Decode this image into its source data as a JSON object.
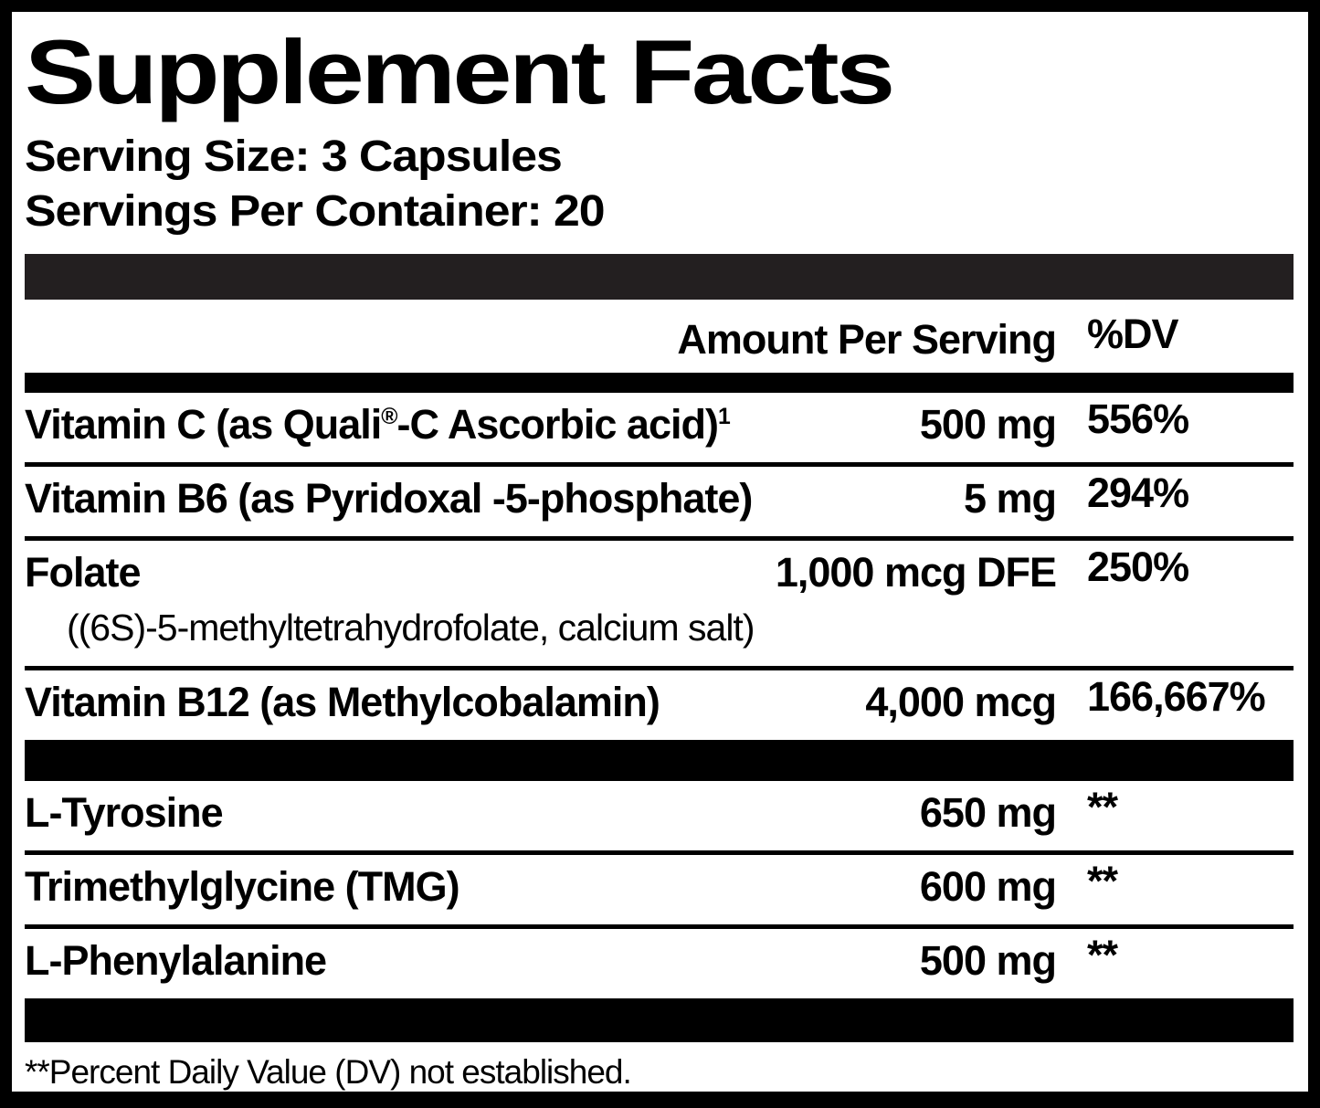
{
  "colors": {
    "ink": "#000000",
    "paper": "#ffffff",
    "soft_bar": "#231f20"
  },
  "label": {
    "title": "Supplement Facts",
    "serving_size": "Serving Size: 3 Capsules",
    "servings_per_container": "Servings Per Container: 20",
    "columns": {
      "amount": "Amount Per Serving",
      "dv": "%DV"
    },
    "rows": [
      {
        "name_pre": "Vitamin C (as Quali",
        "name_sup_reg": "®",
        "name_mid": "-C Ascorbic acid)",
        "name_sup_note": "1",
        "amount": "500 mg",
        "dv": "556%"
      },
      {
        "name": "Vitamin B6 (as Pyridoxal -5-phosphate)",
        "amount": "5 mg",
        "dv": "294%"
      },
      {
        "name": "Folate",
        "subname": "((6S)-5-methyltetrahydrofolate, calcium salt)",
        "amount": "1,000 mcg DFE",
        "dv": "250%"
      },
      {
        "name": "Vitamin B12 (as Methylcobalamin)",
        "amount": "4,000 mcg",
        "dv": "166,667%"
      },
      {
        "name": "L-Tyrosine",
        "amount": "650 mg",
        "dv": "**"
      },
      {
        "name": "Trimethylglycine (TMG)",
        "amount": "600 mg",
        "dv": "**"
      },
      {
        "name": "L-Phenylalanine",
        "amount": "500 mg",
        "dv": "**"
      }
    ],
    "footnote": "**Percent Daily Value (DV) not established."
  }
}
